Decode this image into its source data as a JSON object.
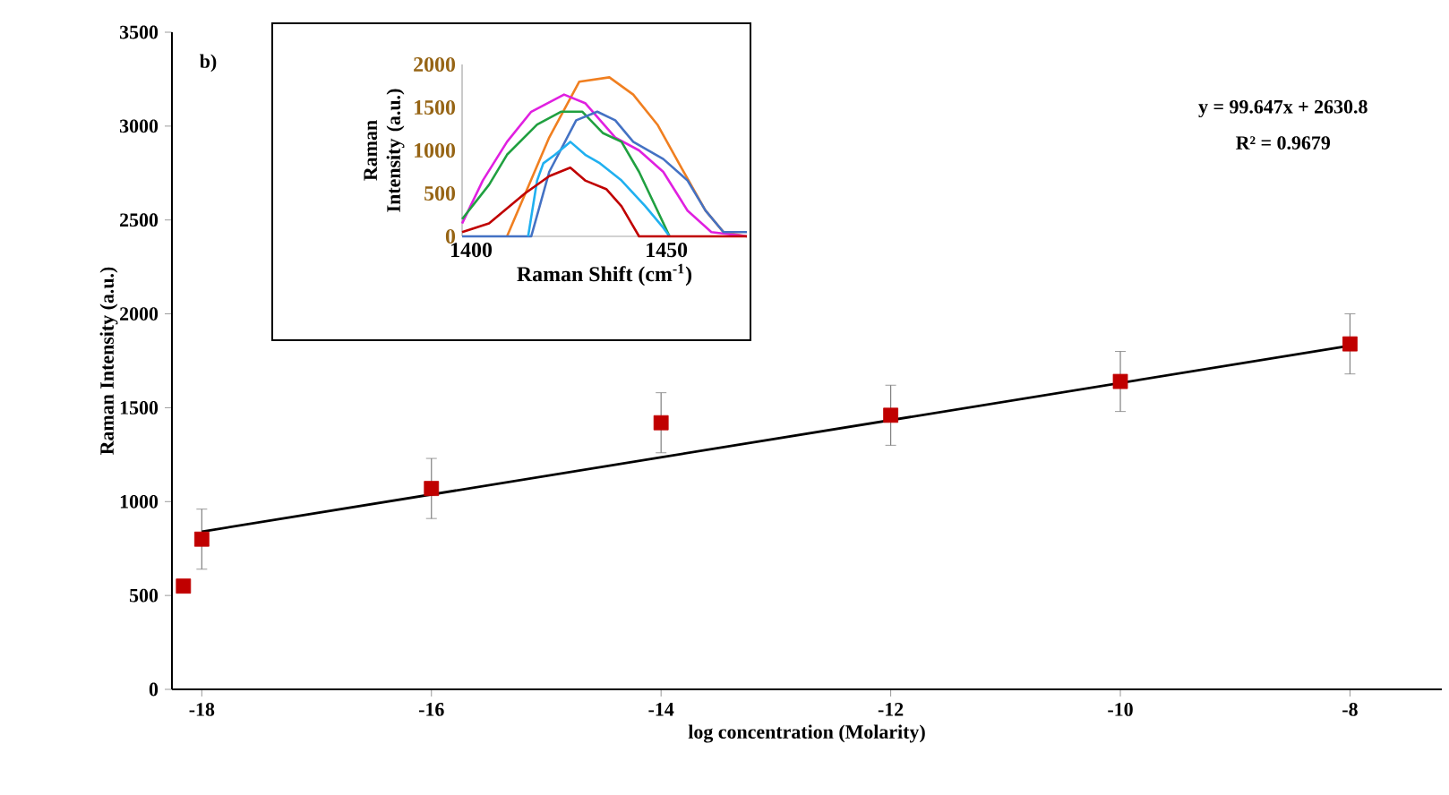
{
  "chart_data": [
    {
      "type": "scatter",
      "xlabel": "log concentration  (Molarity)",
      "ylabel": "Raman  Intensity  (a.u.)",
      "xlim": [
        -18.26,
        -7.2
      ],
      "ylim": [
        0,
        3500
      ],
      "xticks": [
        -18,
        -16,
        -14,
        -12,
        -10,
        -8
      ],
      "yticks": [
        0,
        500,
        1000,
        1500,
        2000,
        2500,
        3000,
        3500
      ],
      "annotations": [
        "b)",
        "y = 99.647x + 2630.8",
        "R² = 0.9679"
      ],
      "series": [
        {
          "type": "scatter",
          "color": "#c00000",
          "marker": "square",
          "x": [
            -18.16,
            -18,
            -16,
            -14,
            -12,
            -10,
            -8
          ],
          "values": [
            550,
            800,
            1070,
            1420,
            1460,
            1640,
            1840
          ],
          "errors": [
            null,
            160,
            160,
            160,
            160,
            160,
            160
          ]
        },
        {
          "type": "line",
          "color": "#000000",
          "x": [
            -18,
            -8
          ],
          "values": [
            840,
            1830
          ]
        }
      ]
    },
    {
      "type": "line",
      "xlabel": "Raman Shift (cm$^{-1}$)",
      "ylabel": "Raman Intensity (a.u.)",
      "xlim": [
        1397.7,
        1470.6
      ],
      "ylim": [
        0,
        2000
      ],
      "xticks": [
        1400,
        1450
      ],
      "yticks": [
        0,
        500,
        1000,
        1500,
        2000
      ],
      "marker": "none",
      "series": [
        {
          "color": "#f07f20",
          "x": [
            1409.2,
            1420,
            1427.7,
            1435.4,
            1441.5,
            1447.7,
            1453.8,
            1460,
            1464.6,
            1470.6
          ],
          "values": [
            0,
            1150,
            1800,
            1850,
            1650,
            1300,
            800,
            300,
            50,
            0
          ]
        },
        {
          "color": "#e020e0",
          "x": [
            1397.7,
            1403,
            1409.2,
            1415.4,
            1423.8,
            1429.2,
            1436.9,
            1443,
            1449.2,
            1455.4,
            1461.5,
            1470.6
          ],
          "values": [
            150,
            650,
            1100,
            1450,
            1650,
            1550,
            1150,
            1000,
            750,
            300,
            50,
            0
          ]
        },
        {
          "color": "#20a040",
          "x": [
            1397.7,
            1404.6,
            1409.2,
            1416.9,
            1423,
            1428.5,
            1433.8,
            1438.5,
            1443,
            1447.7,
            1450.8
          ],
          "values": [
            200,
            600,
            950,
            1300,
            1450,
            1450,
            1200,
            1100,
            750,
            300,
            0
          ]
        },
        {
          "color": "#4472c4",
          "x": [
            1397.7,
            1415.4,
            1420,
            1426.9,
            1432.3,
            1436.9,
            1441.5,
            1449.2,
            1455.4,
            1460,
            1464.6,
            1470.6
          ],
          "values": [
            0,
            0,
            750,
            1350,
            1450,
            1350,
            1100,
            900,
            650,
            300,
            50,
            50
          ]
        },
        {
          "color": "#20b0f0",
          "x": [
            1414.6,
            1416.9,
            1418.5,
            1421.5,
            1425.4,
            1429.2,
            1433,
            1438.5,
            1444.6,
            1449.2,
            1450.8
          ],
          "values": [
            0,
            650,
            850,
            950,
            1100,
            950,
            850,
            650,
            350,
            100,
            0
          ]
        },
        {
          "color": "#c00000",
          "x": [
            1397.7,
            1404.6,
            1413.8,
            1420,
            1425.4,
            1429.2,
            1434.6,
            1438.5,
            1443,
            1470.6
          ],
          "values": [
            50,
            150,
            500,
            700,
            800,
            650,
            550,
            350,
            0,
            0
          ]
        }
      ]
    }
  ]
}
